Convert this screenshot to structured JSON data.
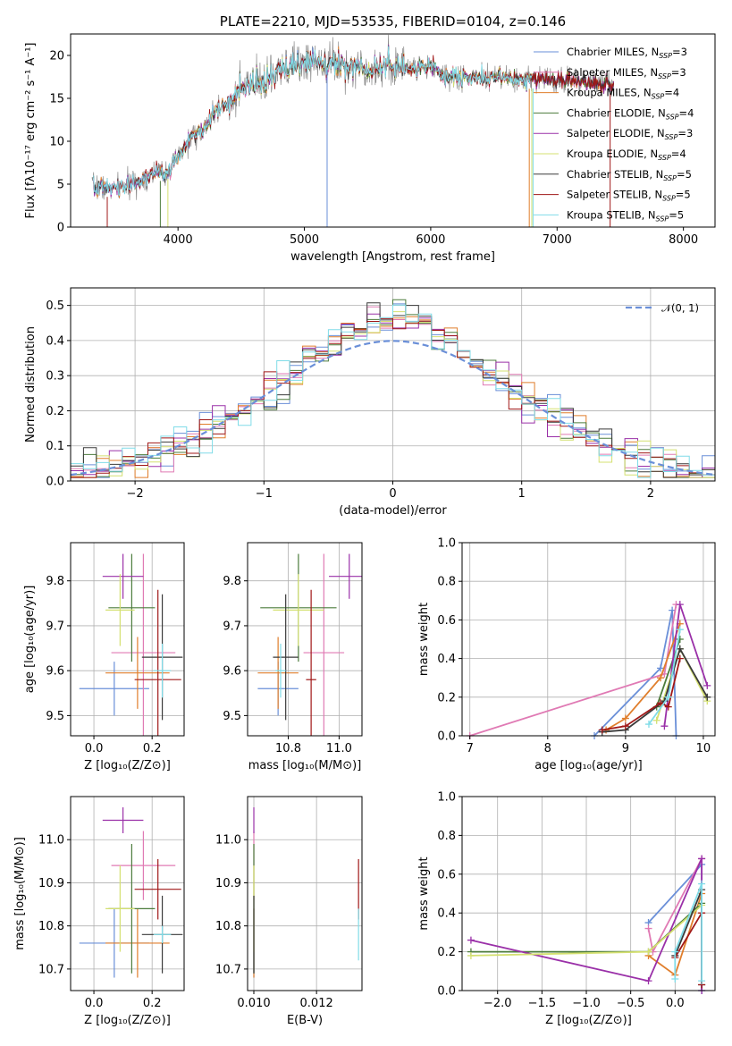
{
  "colors": {
    "Chabrier MILES": "#6a8fd8",
    "Salpeter MILES": "#e07ab4",
    "Kroupa MILES": "#e07e2c",
    "Chabrier ELODIE": "#4c7c3c",
    "Salpeter ELODIE": "#9a30a8",
    "Kroupa ELODIE": "#d4e070",
    "Chabrier STELIB": "#3a3a3a",
    "Salpeter STELIB": "#a01818",
    "Kroupa STELIB": "#80dce8"
  },
  "chart_data": [
    {
      "id": "spectrum",
      "type": "line",
      "title": "PLATE=2210, MJD=53535, FIBERID=0104, z=0.146",
      "xlabel": "wavelength [Angstrom, rest frame]",
      "ylabel": "Flux [fλ10⁻¹⁷ erg cm⁻² s⁻¹ A⁻¹]",
      "xlim": [
        3150,
        8250
      ],
      "ylim": [
        0,
        22.5
      ],
      "xticks": [
        4000,
        5000,
        6000,
        7000,
        8000
      ],
      "yticks": [
        0,
        5,
        10,
        15,
        20
      ],
      "grid": false,
      "legend_position": "top-right",
      "continuum_knots": {
        "x": [
          3300,
          3500,
          3700,
          3800,
          3900,
          4000,
          4100,
          4200,
          4300,
          4400,
          4500,
          4700,
          4900,
          5100,
          5300,
          5500,
          5700,
          5900,
          6000,
          6100,
          6300,
          6500,
          6700,
          6900,
          7100,
          7300,
          7450
        ],
        "y": [
          4.8,
          4.4,
          5.3,
          6.5,
          6.3,
          8.0,
          10.5,
          11.2,
          13.5,
          14.5,
          16.0,
          17.0,
          18.8,
          19.5,
          19.0,
          18.5,
          18.8,
          18.5,
          19.0,
          17.7,
          17.3,
          17.5,
          17.0,
          17.3,
          17.0,
          16.8,
          16.5
        ]
      },
      "series": [
        {
          "name": "Chabrier MILES",
          "legend": "Chabrier MILES, N",
          "legend_sub": "SSP",
          "legend_eq": "=3"
        },
        {
          "name": "Salpeter MILES",
          "legend": "Salpeter MILES, N",
          "legend_sub": "SSP",
          "legend_eq": "=3"
        },
        {
          "name": "Kroupa MILES",
          "legend": "Kroupa MILES, N",
          "legend_sub": "SSP",
          "legend_eq": "=4"
        },
        {
          "name": "Chabrier ELODIE",
          "legend": "Chabrier ELODIE, N",
          "legend_sub": "SSP",
          "legend_eq": "=4"
        },
        {
          "name": "Salpeter ELODIE",
          "legend": "Salpeter ELODIE, N",
          "legend_sub": "SSP",
          "legend_eq": "=3"
        },
        {
          "name": "Kroupa ELODIE",
          "legend": "Kroupa ELODIE, N",
          "legend_sub": "SSP",
          "legend_eq": "=4"
        },
        {
          "name": "Chabrier STELIB",
          "legend": "Chabrier STELIB, N",
          "legend_sub": "SSP",
          "legend_eq": "=5"
        },
        {
          "name": "Salpeter STELIB",
          "legend": "Salpeter STELIB, N",
          "legend_sub": "SSP",
          "legend_eq": "=5"
        },
        {
          "name": "Kroupa STELIB",
          "legend": "Kroupa STELIB, N",
          "legend_sub": "SSP",
          "legend_eq": "=5"
        }
      ]
    },
    {
      "id": "residuals",
      "type": "line",
      "xlabel": "(data-model)/error",
      "ylabel": "Normed distribution",
      "xlim": [
        -2.5,
        2.5
      ],
      "ylim": [
        0,
        0.55
      ],
      "xticks": [
        -2,
        -1,
        0,
        1,
        2
      ],
      "yticks": [
        0.0,
        0.1,
        0.2,
        0.3,
        0.4,
        0.5
      ],
      "grid": true,
      "legend_position": "top-right",
      "legend": "𝒩(0, 1)",
      "bin_width": 0.1
    },
    {
      "id": "age-vs-Z",
      "type": "scatter",
      "xlabel": "Z [log₁₀(Z/Z⊙)]",
      "ylabel": "age  [log₁₀(age/yr)]",
      "xlim": [
        -0.08,
        0.31
      ],
      "ylim": [
        9.455,
        9.885
      ],
      "xticks": [
        0.0,
        0.2
      ],
      "yticks": [
        9.5,
        9.6,
        9.7,
        9.8
      ],
      "grid": true,
      "points": [
        {
          "series": "Chabrier MILES",
          "x": 0.07,
          "y": 9.56,
          "xerr": 0.12,
          "yerr": 0.06
        },
        {
          "series": "Salpeter MILES",
          "x": 0.17,
          "y": 9.64,
          "xerr": 0.11,
          "yerr": 0.22
        },
        {
          "series": "Kroupa MILES",
          "x": 0.15,
          "y": 9.595,
          "xerr": 0.11,
          "yerr": 0.08
        },
        {
          "series": "Chabrier ELODIE",
          "x": 0.13,
          "y": 9.74,
          "xerr": 0.08,
          "yerr": 0.12
        },
        {
          "series": "Salpeter ELODIE",
          "x": 0.1,
          "y": 9.81,
          "xerr": 0.07,
          "yerr": 0.05
        },
        {
          "series": "Kroupa ELODIE",
          "x": 0.09,
          "y": 9.735,
          "xerr": 0.05,
          "yerr": 0.08
        },
        {
          "series": "Chabrier STELIB",
          "x": 0.235,
          "y": 9.63,
          "xerr": 0.07,
          "yerr": 0.14
        },
        {
          "series": "Salpeter STELIB",
          "x": 0.22,
          "y": 9.58,
          "xerr": 0.08,
          "yerr": 0.2
        },
        {
          "series": "Kroupa STELIB",
          "x": 0.235,
          "y": 9.6,
          "xerr": 0.03,
          "yerr": 0.06
        }
      ]
    },
    {
      "id": "age-vs-mass",
      "type": "scatter",
      "xlabel": "mass [log₁₀(M/M⊙)]",
      "ylabel": "",
      "xlim": [
        10.64,
        11.09
      ],
      "ylim": [
        9.455,
        9.885
      ],
      "xticks": [
        10.8,
        11.0
      ],
      "yticks": [
        9.5,
        9.6,
        9.7,
        9.8
      ],
      "grid": true,
      "points": [
        {
          "series": "Chabrier MILES",
          "x": 10.76,
          "y": 9.56,
          "xerr": 0.08,
          "yerr": 0.06
        },
        {
          "series": "Salpeter MILES",
          "x": 10.94,
          "y": 9.64,
          "xerr": 0.08,
          "yerr": 0.22
        },
        {
          "series": "Kroupa MILES",
          "x": 10.76,
          "y": 9.595,
          "xerr": 0.08,
          "yerr": 0.08
        },
        {
          "series": "Chabrier ELODIE",
          "x": 10.84,
          "y": 9.74,
          "xerr": 0.15,
          "yerr": 0.12
        },
        {
          "series": "Salpeter ELODIE",
          "x": 11.04,
          "y": 9.81,
          "xerr": 0.08,
          "yerr": 0.05
        },
        {
          "series": "Kroupa ELODIE",
          "x": 10.84,
          "y": 9.735,
          "xerr": 0.1,
          "yerr": 0.08
        },
        {
          "series": "Chabrier STELIB",
          "x": 10.79,
          "y": 9.63,
          "xerr": 0.05,
          "yerr": 0.14
        },
        {
          "series": "Salpeter STELIB",
          "x": 10.89,
          "y": 9.58,
          "xerr": 0.02,
          "yerr": 0.2
        },
        {
          "series": "Kroupa STELIB",
          "x": 10.77,
          "y": 9.6,
          "xerr": 0.02,
          "yerr": 0.06
        }
      ]
    },
    {
      "id": "mass-weight-vs-age",
      "type": "line",
      "xlabel": "age  [log₁₀(age/yr)]",
      "ylabel": "mass weight",
      "xlim": [
        6.9,
        10.15
      ],
      "ylim": [
        0,
        1.0
      ],
      "xticks": [
        7,
        8,
        9,
        10
      ],
      "yticks": [
        0.0,
        0.2,
        0.4,
        0.6,
        0.8,
        1.0
      ],
      "grid": true,
      "series": [
        {
          "name": "Chabrier MILES",
          "x": [
            8.6,
            9.45,
            9.6,
            9.65
          ],
          "y": [
            0.0,
            0.35,
            0.65,
            0.0
          ]
        },
        {
          "name": "Salpeter MILES",
          "x": [
            7.0,
            9.5,
            9.65
          ],
          "y": [
            0.0,
            0.32,
            0.68
          ]
        },
        {
          "name": "Kroupa MILES",
          "x": [
            8.75,
            9.0,
            9.45,
            9.7
          ],
          "y": [
            0.03,
            0.09,
            0.3,
            0.58
          ]
        },
        {
          "name": "Chabrier ELODIE",
          "x": [
            9.4,
            9.7
          ],
          "y": [
            0.15,
            0.5
          ]
        },
        {
          "name": "Salpeter ELODIE",
          "x": [
            9.5,
            9.7,
            10.05
          ],
          "y": [
            0.05,
            0.68,
            0.26
          ]
        },
        {
          "name": "Kroupa ELODIE",
          "x": [
            9.4,
            9.7,
            10.05
          ],
          "y": [
            0.08,
            0.45,
            0.18
          ]
        },
        {
          "name": "Chabrier STELIB",
          "x": [
            8.7,
            9.0,
            9.5,
            9.7,
            10.05
          ],
          "y": [
            0.02,
            0.03,
            0.18,
            0.45,
            0.2
          ]
        },
        {
          "name": "Salpeter STELIB",
          "x": [
            8.7,
            9.0,
            9.45,
            9.55,
            9.7
          ],
          "y": [
            0.03,
            0.05,
            0.17,
            0.15,
            0.4
          ]
        },
        {
          "name": "Kroupa STELIB",
          "x": [
            9.3,
            9.55,
            9.7
          ],
          "y": [
            0.06,
            0.2,
            0.55
          ]
        }
      ]
    },
    {
      "id": "mass-vs-Z",
      "type": "scatter",
      "xlabel": "Z [log₁₀(Z/Z⊙)]",
      "ylabel": "mass [log₁₀(M/M⊙)]",
      "xlim": [
        -0.08,
        0.31
      ],
      "ylim": [
        10.65,
        11.1
      ],
      "xticks": [
        0.0,
        0.2
      ],
      "yticks": [
        10.7,
        10.8,
        10.9,
        11.0
      ],
      "grid": true,
      "points": [
        {
          "series": "Chabrier MILES",
          "x": 0.07,
          "y": 10.76,
          "xerr": 0.12,
          "yerr": 0.08
        },
        {
          "series": "Salpeter MILES",
          "x": 0.17,
          "y": 10.94,
          "xerr": 0.11,
          "yerr": 0.08
        },
        {
          "series": "Kroupa MILES",
          "x": 0.15,
          "y": 10.76,
          "xerr": 0.11,
          "yerr": 0.08
        },
        {
          "series": "Chabrier ELODIE",
          "x": 0.13,
          "y": 10.84,
          "xerr": 0.08,
          "yerr": 0.15
        },
        {
          "series": "Salpeter ELODIE",
          "x": 0.1,
          "y": 11.045,
          "xerr": 0.07,
          "yerr": 0.03
        },
        {
          "series": "Kroupa ELODIE",
          "x": 0.09,
          "y": 10.84,
          "xerr": 0.05,
          "yerr": 0.1
        },
        {
          "series": "Chabrier STELIB",
          "x": 0.235,
          "y": 10.78,
          "xerr": 0.07,
          "yerr": 0.09
        },
        {
          "series": "Salpeter STELIB",
          "x": 0.22,
          "y": 10.885,
          "xerr": 0.08,
          "yerr": 0.07
        },
        {
          "series": "Kroupa STELIB",
          "x": 0.235,
          "y": 10.78,
          "xerr": 0.03,
          "yerr": 0.02
        }
      ]
    },
    {
      "id": "mass-vs-ebv",
      "type": "scatter",
      "xlabel": "E(B-V)",
      "ylabel": "",
      "xlim": [
        0.0098,
        0.01345
      ],
      "ylim": [
        10.65,
        11.1
      ],
      "xticks": [
        0.01,
        0.012
      ],
      "yticks": [
        10.7,
        10.8,
        10.9,
        11.0
      ],
      "grid": true,
      "points": [
        {
          "series": "Chabrier MILES",
          "x": 0.01,
          "y": 10.76,
          "xerr": 0,
          "yerr": 0.08
        },
        {
          "series": "Salpeter MILES",
          "x": 0.01,
          "y": 10.94,
          "xerr": 0,
          "yerr": 0.08
        },
        {
          "series": "Kroupa MILES",
          "x": 0.01,
          "y": 10.76,
          "xerr": 0,
          "yerr": 0.08
        },
        {
          "series": "Chabrier ELODIE",
          "x": 0.01,
          "y": 10.84,
          "xerr": 0,
          "yerr": 0.15
        },
        {
          "series": "Salpeter ELODIE",
          "x": 0.01,
          "y": 11.045,
          "xerr": 0,
          "yerr": 0.03
        },
        {
          "series": "Kroupa ELODIE",
          "x": 0.01,
          "y": 10.84,
          "xerr": 0,
          "yerr": 0.1
        },
        {
          "series": "Chabrier STELIB",
          "x": 0.01,
          "y": 10.78,
          "xerr": 0,
          "yerr": 0.09
        },
        {
          "series": "Salpeter STELIB",
          "x": 0.01334,
          "y": 10.885,
          "xerr": 0,
          "yerr": 0.07
        },
        {
          "series": "Kroupa STELIB",
          "x": 0.01334,
          "y": 10.78,
          "xerr": 0,
          "yerr": 0.06
        }
      ]
    },
    {
      "id": "mass-weight-vs-Z",
      "type": "line",
      "xlabel": "Z [log₁₀(Z/Z⊙)]",
      "ylabel": "mass weight",
      "xlim": [
        -2.4,
        0.45
      ],
      "ylim": [
        0,
        1.0
      ],
      "xticks": [
        -2.0,
        -1.5,
        -1.0,
        -0.5,
        0.0
      ],
      "yticks": [
        0.0,
        0.2,
        0.4,
        0.6,
        0.8,
        1.0
      ],
      "grid": true,
      "series": [
        {
          "name": "Chabrier MILES",
          "x": [
            -0.3,
            0.3,
            0.3
          ],
          "y": [
            0.35,
            0.65,
            0.0
          ]
        },
        {
          "name": "Salpeter MILES",
          "x": [
            -0.3,
            -0.25,
            0.3
          ],
          "y": [
            0.32,
            0.2,
            0.68
          ]
        },
        {
          "name": "Kroupa MILES",
          "x": [
            -0.3,
            0.0,
            0.3
          ],
          "y": [
            0.18,
            0.08,
            0.5
          ]
        },
        {
          "name": "Chabrier ELODIE",
          "x": [
            -2.3,
            -0.3,
            0.3
          ],
          "y": [
            0.2,
            0.2,
            0.45
          ]
        },
        {
          "name": "Salpeter ELODIE",
          "x": [
            -2.3,
            -0.3,
            0.3,
            0.3
          ],
          "y": [
            0.26,
            0.05,
            0.68,
            0.0
          ]
        },
        {
          "name": "Kroupa ELODIE",
          "x": [
            -2.3,
            -0.3,
            0.3
          ],
          "y": [
            0.18,
            0.2,
            0.44
          ]
        },
        {
          "name": "Chabrier STELIB",
          "x": [
            0.0,
            0.3,
            0.3
          ],
          "y": [
            0.18,
            0.52,
            0.03
          ]
        },
        {
          "name": "Salpeter STELIB",
          "x": [
            0.0,
            0.3,
            0.3
          ],
          "y": [
            0.17,
            0.4,
            0.03
          ]
        },
        {
          "name": "Kroupa STELIB",
          "x": [
            0.0,
            0.0,
            0.3,
            0.3
          ],
          "y": [
            0.06,
            0.2,
            0.55,
            0.05
          ]
        }
      ]
    }
  ]
}
